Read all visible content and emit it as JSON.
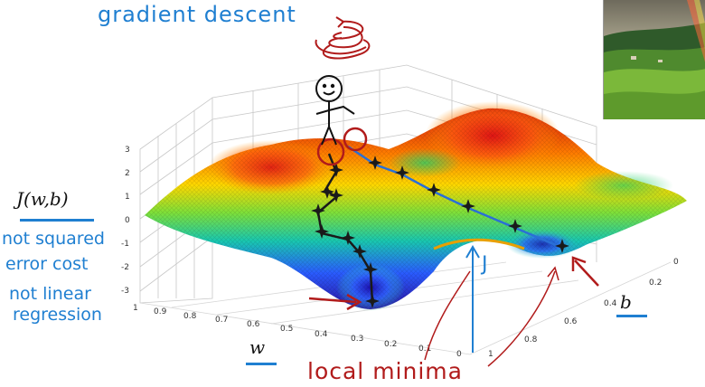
{
  "annotations": {
    "title": "gradient descent",
    "cost_label": "J(w,b)",
    "note1_line1": "not squared",
    "note1_line2": "error cost",
    "note2_line1": "not linear",
    "note2_line2": "regression",
    "w_label": "w",
    "b_label": "b",
    "j_label": "J",
    "local_minima": "local minima"
  },
  "axes": {
    "z_ticks": [
      "3",
      "2",
      "1",
      "0",
      "-1",
      "-2",
      "-3"
    ],
    "w_ticks": [
      "1",
      "0.9",
      "0.8",
      "0.7",
      "0.6",
      "0.5",
      "0.4",
      "0.3",
      "0.2",
      "0.1",
      "0"
    ],
    "b_ticks": [
      "0",
      "0.2",
      "0.4",
      "0.6",
      "0.8",
      "1"
    ]
  },
  "colors": {
    "annotation_blue": "#1f7fd1",
    "annotation_red": "#b11b1b",
    "path_blue": "#2a6fd6",
    "star": "#1a1a1a"
  },
  "photo": {
    "subject": "green-hills-with-rainbow"
  }
}
